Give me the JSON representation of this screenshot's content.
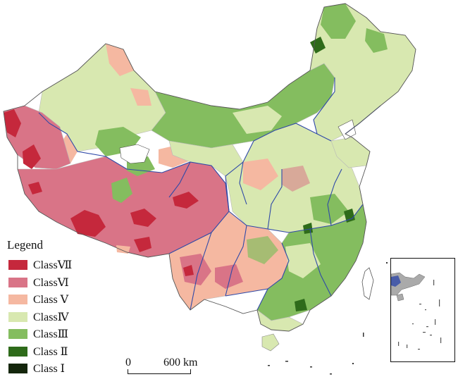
{
  "legend": {
    "title": "Legend",
    "items": [
      {
        "label": "ClassⅦ",
        "color": "#c5283c"
      },
      {
        "label": "ClassⅥ",
        "color": "#d97487"
      },
      {
        "label": "Class Ⅴ",
        "color": "#f5b8a1"
      },
      {
        "label": "ClassⅣ",
        "color": "#d8e8b0"
      },
      {
        "label": "ClassⅢ",
        "color": "#84bd5f"
      },
      {
        "label": "Class Ⅱ",
        "color": "#2e6b1a"
      },
      {
        "label": "Class Ⅰ",
        "color": "#14260c"
      }
    ]
  },
  "scale_bar": {
    "start": "0",
    "end": "600 km"
  },
  "colors": {
    "province_border": "#2f49a8",
    "county_border": "#b8b8b8",
    "lake": "#ffffff",
    "ocean": "#ffffff"
  }
}
